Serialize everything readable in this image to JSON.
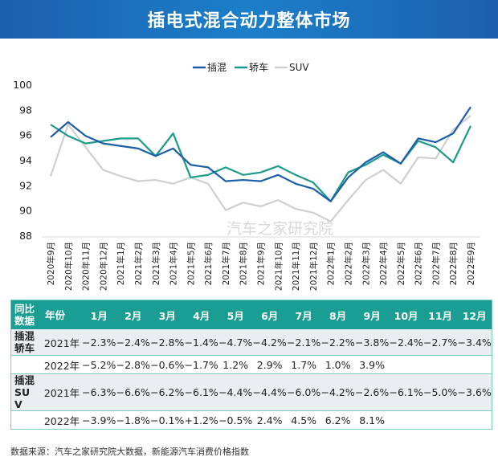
{
  "header": {
    "title": "插电式混合动力整体市场"
  },
  "watermark": "汽车之家研究院",
  "chart_data": {
    "type": "line",
    "categories": [
      "2020年9月",
      "2020年10月",
      "2020年11月",
      "2020年12月",
      "2021年1月",
      "2021年2月",
      "2021年3月",
      "2021年4月",
      "2021年5月",
      "2021年6月",
      "2021年7月",
      "2021年8月",
      "2021年9月",
      "2021年10月",
      "2021年11月",
      "2021年12月",
      "2022年1月",
      "2022年2月",
      "2022年3月",
      "2022年4月",
      "2022年5月",
      "2022年6月",
      "2022年7月",
      "2022年8月",
      "2022年9月"
    ],
    "ylim": [
      88,
      100
    ],
    "yticks": [
      "88",
      "90",
      "92",
      "94",
      "96",
      "98",
      "100"
    ],
    "grid": false,
    "legend": "top",
    "series": [
      {
        "name": "插混",
        "color": "#1a5ea8",
        "values": [
          95.8,
          97.0,
          95.9,
          95.3,
          95.1,
          94.9,
          94.3,
          94.9,
          93.6,
          93.4,
          92.3,
          92.4,
          92.3,
          92.8,
          92.1,
          91.7,
          90.7,
          92.6,
          93.8,
          94.6,
          93.7,
          95.7,
          95.4,
          96.1,
          98.2
        ]
      },
      {
        "name": "轿车",
        "color": "#1a9a8a",
        "values": [
          96.8,
          95.9,
          95.3,
          95.5,
          95.7,
          95.7,
          94.3,
          96.1,
          92.6,
          92.8,
          93.4,
          92.8,
          93.0,
          93.5,
          92.8,
          92.2,
          90.7,
          93.0,
          93.6,
          94.4,
          93.7,
          95.5,
          95.0,
          93.8,
          96.7
        ]
      },
      {
        "name": "SUV",
        "color": "#cfcfcf",
        "values": [
          92.7,
          96.8,
          95.0,
          93.2,
          92.7,
          92.3,
          92.4,
          92.1,
          92.6,
          92.1,
          90.0,
          90.6,
          90.3,
          90.8,
          90.1,
          89.8,
          89.1,
          90.8,
          92.4,
          93.2,
          92.1,
          94.2,
          94.1,
          96.4,
          97.5
        ]
      }
    ]
  },
  "table": {
    "headers": [
      "同比\n数据",
      "年份",
      "1月",
      "2月",
      "3月",
      "4月",
      "5月",
      "6月",
      "7月",
      "8月",
      "9月",
      "10月",
      "11月",
      "12月"
    ],
    "groups": [
      {
        "label": "插混\n轿车",
        "rows": [
          {
            "year": "2021年",
            "values": [
              "−2.3%",
              "−2.4%",
              "−2.8%",
              "−1.4%",
              "−4.7%",
              "−4.2%",
              "−2.1%",
              "−2.2%",
              "−3.8%",
              "−2.4%",
              "−2.7%",
              "−3.4%"
            ]
          },
          {
            "year": "2022年",
            "values": [
              "−5.2%",
              "−2.8%",
              "−0.6%",
              "−1.7%",
              "1.2%",
              "2.9%",
              "1.7%",
              "1.0%",
              "3.9%",
              "",
              "",
              ""
            ]
          }
        ]
      },
      {
        "label": "插混\nSU\nV",
        "rows": [
          {
            "year": "2021年",
            "values": [
              "−6.3%",
              "−6.6%",
              "−6.2%",
              "−6.1%",
              "−4.4%",
              "−4.4%",
              "−6.0%",
              "−4.2%",
              "−2.6%",
              "−6.1%",
              "−5.0%",
              "−3.6%"
            ]
          },
          {
            "year": "2022年",
            "values": [
              "−3.9%",
              "−1.8%",
              "−0.1%",
              "+1.2%",
              "−0.5%",
              "2.4%",
              "4.5%",
              "6.2%",
              "8.1%",
              "",
              "",
              ""
            ]
          }
        ]
      }
    ]
  },
  "source": "数据来源：汽车之家研究院大数据，新能源汽车消费价格指数"
}
